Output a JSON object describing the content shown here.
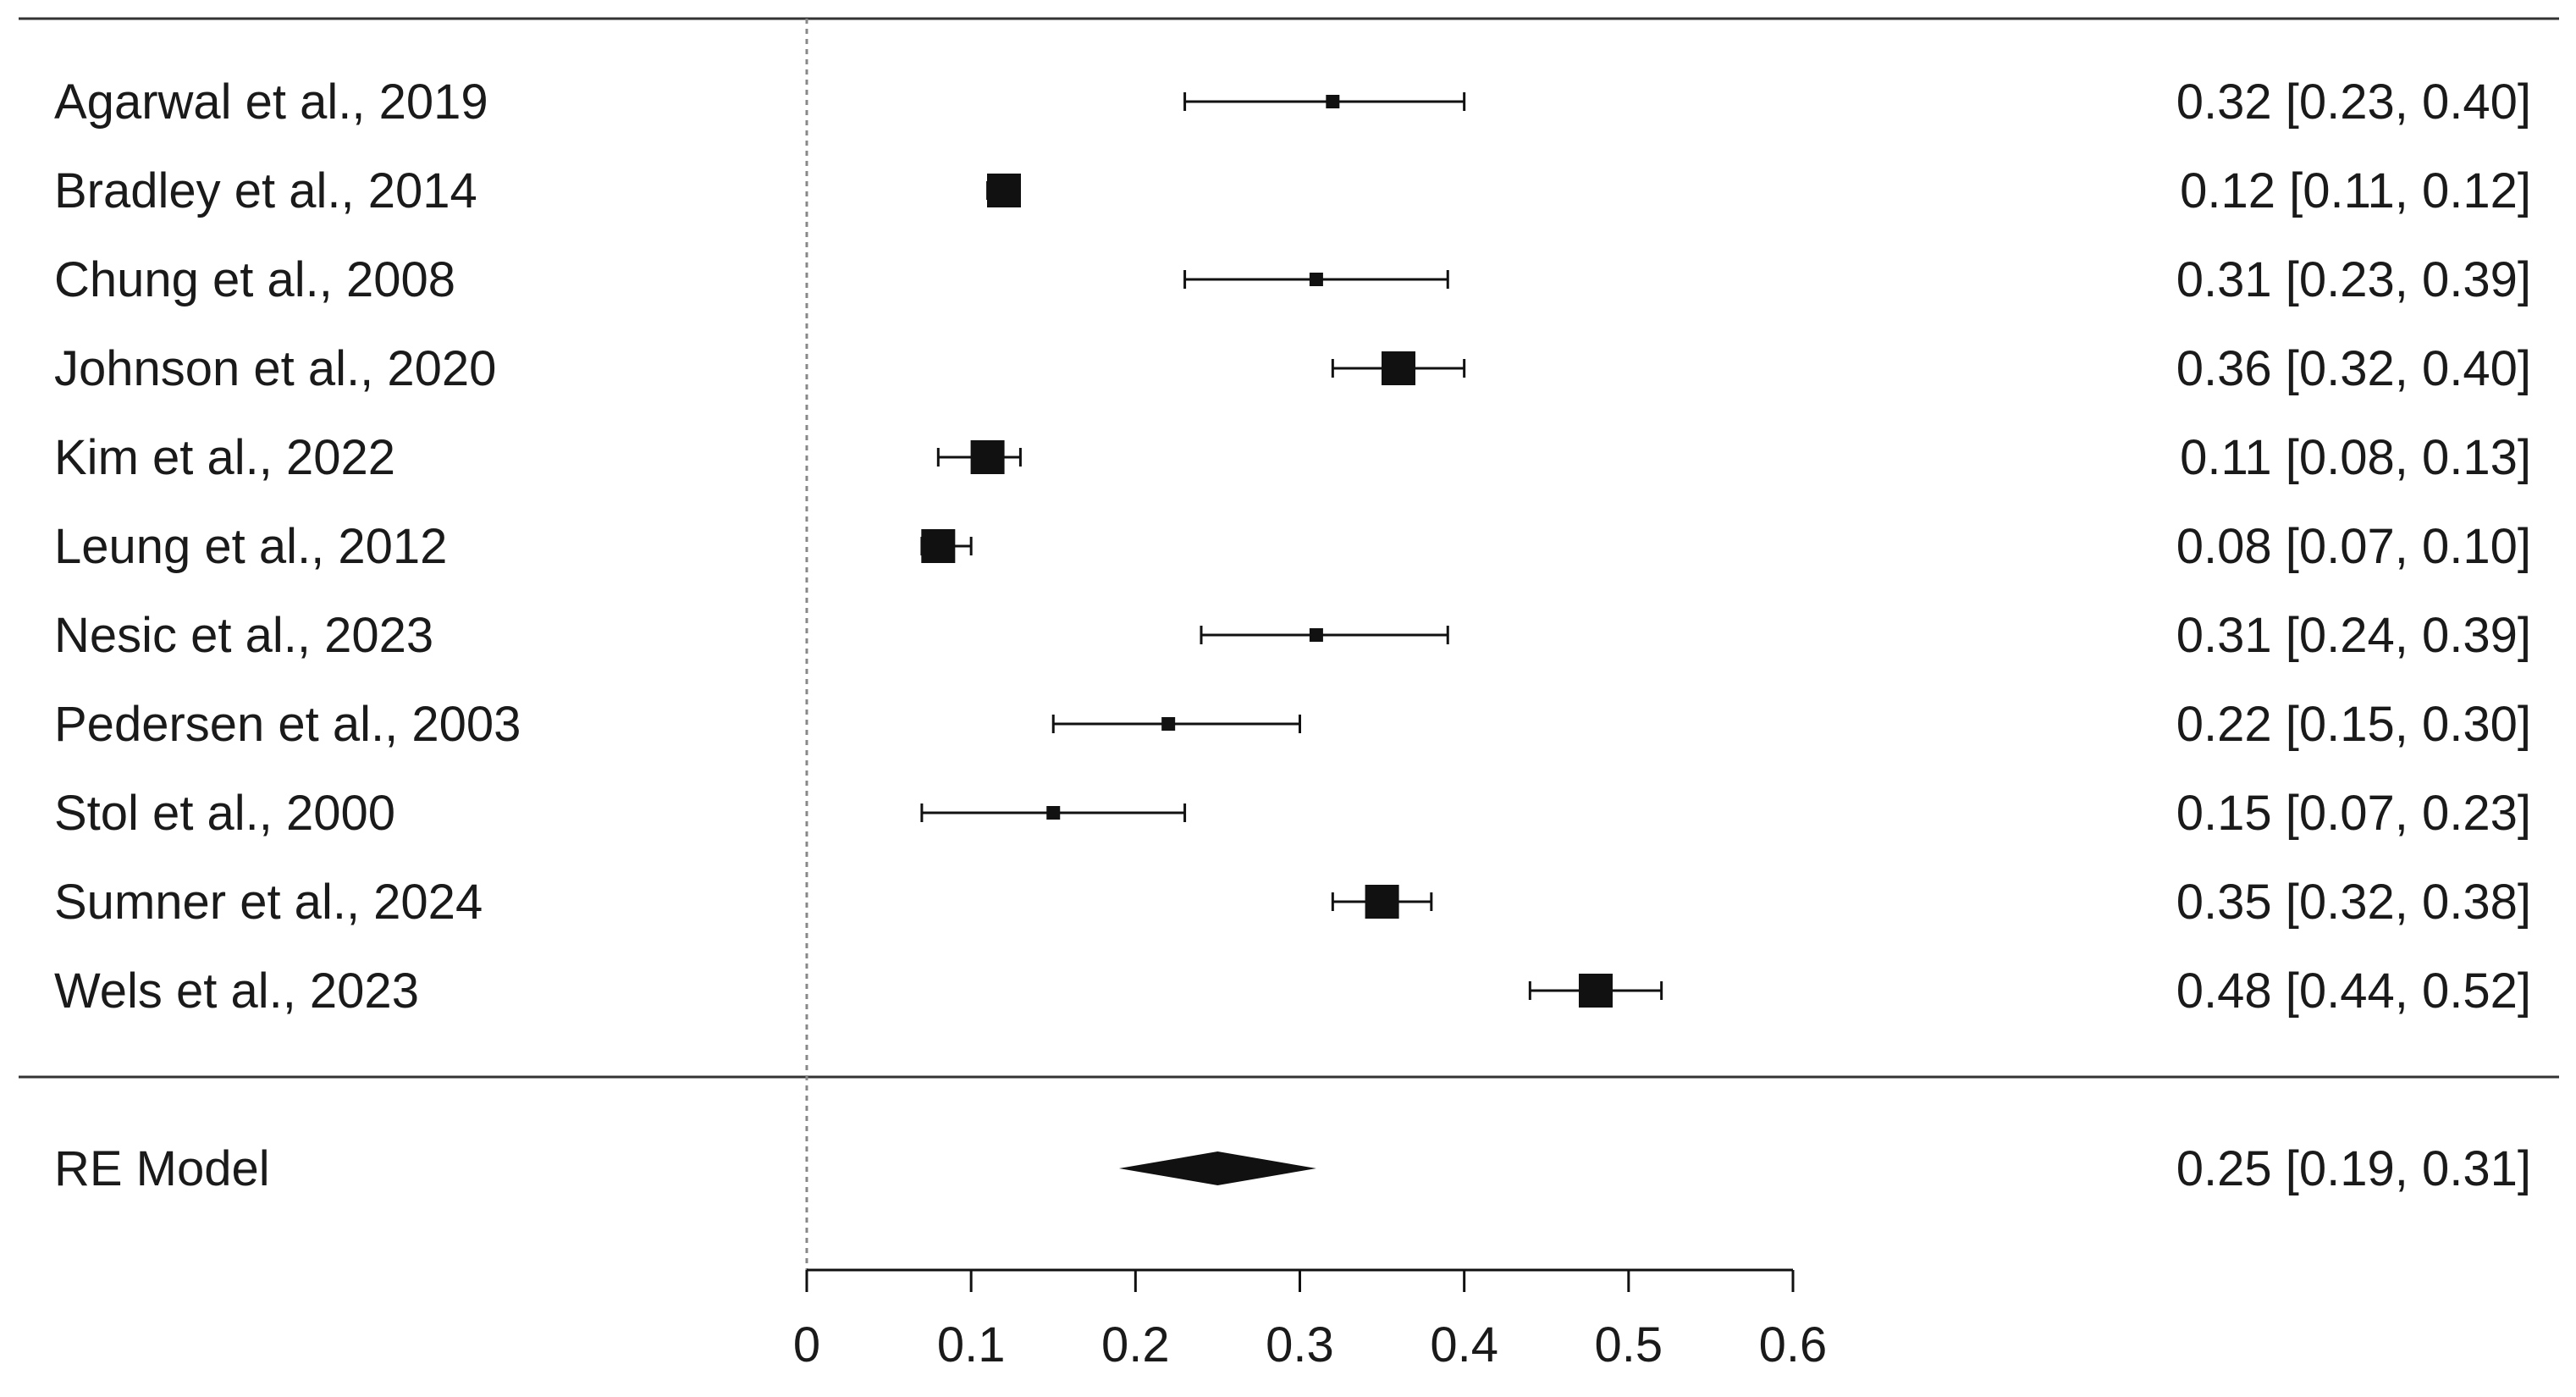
{
  "chart_data": {
    "type": "forest",
    "studies": [
      {
        "label": "Agarwal et al., 2019",
        "estimate": 0.32,
        "ci_low": 0.23,
        "ci_high": 0.4,
        "text": "0.32 [0.23, 0.40]",
        "weight_size": "small"
      },
      {
        "label": "Bradley et al., 2014",
        "estimate": 0.12,
        "ci_low": 0.11,
        "ci_high": 0.12,
        "text": "0.12 [0.11, 0.12]",
        "weight_size": "large"
      },
      {
        "label": "Chung et al., 2008",
        "estimate": 0.31,
        "ci_low": 0.23,
        "ci_high": 0.39,
        "text": "0.31 [0.23, 0.39]",
        "weight_size": "small"
      },
      {
        "label": "Johnson et al., 2020",
        "estimate": 0.36,
        "ci_low": 0.32,
        "ci_high": 0.4,
        "text": "0.36 [0.32, 0.40]",
        "weight_size": "large"
      },
      {
        "label": "Kim et al., 2022",
        "estimate": 0.11,
        "ci_low": 0.08,
        "ci_high": 0.13,
        "text": "0.11 [0.08, 0.13]",
        "weight_size": "large"
      },
      {
        "label": "Leung et al., 2012",
        "estimate": 0.08,
        "ci_low": 0.07,
        "ci_high": 0.1,
        "text": "0.08 [0.07, 0.10]",
        "weight_size": "large"
      },
      {
        "label": "Nesic et al., 2023",
        "estimate": 0.31,
        "ci_low": 0.24,
        "ci_high": 0.39,
        "text": "0.31 [0.24, 0.39]",
        "weight_size": "small"
      },
      {
        "label": "Pedersen et al., 2003",
        "estimate": 0.22,
        "ci_low": 0.15,
        "ci_high": 0.3,
        "text": "0.22 [0.15, 0.30]",
        "weight_size": "small"
      },
      {
        "label": "Stol et al., 2000",
        "estimate": 0.15,
        "ci_low": 0.07,
        "ci_high": 0.23,
        "text": "0.15 [0.07, 0.23]",
        "weight_size": "small"
      },
      {
        "label": "Sumner et al., 2024",
        "estimate": 0.35,
        "ci_low": 0.32,
        "ci_high": 0.38,
        "text": "0.35 [0.32, 0.38]",
        "weight_size": "large"
      },
      {
        "label": "Wels et al., 2023",
        "estimate": 0.48,
        "ci_low": 0.44,
        "ci_high": 0.52,
        "text": "0.48 [0.44, 0.52]",
        "weight_size": "large"
      }
    ],
    "summary": {
      "label": "RE Model",
      "estimate": 0.25,
      "ci_low": 0.19,
      "ci_high": 0.31,
      "text": "0.25 [0.19, 0.31]"
    },
    "x_ticks": [
      "0",
      "0.1",
      "0.2",
      "0.3",
      "0.4",
      "0.5",
      "0.6"
    ],
    "x_tick_values": [
      0,
      0.1,
      0.2,
      0.3,
      0.4,
      0.5,
      0.6
    ],
    "xlim": [
      0,
      0.6
    ],
    "reference_line": 0,
    "title": "",
    "xlabel": "",
    "ylabel": ""
  },
  "colors": {
    "ink": "#111111",
    "rule": "#333333",
    "reference_line": "#888888",
    "background": "#ffffff"
  }
}
